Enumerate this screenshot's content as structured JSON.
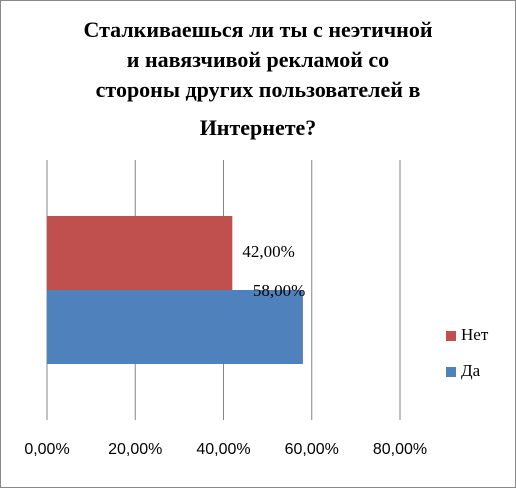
{
  "chart_data": {
    "type": "bar",
    "orientation": "horizontal",
    "title": [
      "Сталкиваешься  ли ты с неэтичной",
      "и навязчивой рекламой со",
      "стороны других пользователей  в",
      "Интернете?"
    ],
    "categories": [
      null
    ],
    "series": [
      {
        "name": "Нет",
        "color": "#C0504D",
        "values": [
          42
        ],
        "value_labels": [
          "42,00%"
        ]
      },
      {
        "name": "Да",
        "color": "#4F81BD",
        "values": [
          58
        ],
        "value_labels": [
          "58,00%"
        ]
      }
    ],
    "xlim": [
      0,
      80
    ],
    "xticks": [
      {
        "value": 0,
        "label": "0,00%"
      },
      {
        "value": 20,
        "label": "20,00%"
      },
      {
        "value": 40,
        "label": "40,00%"
      },
      {
        "value": 60,
        "label": "60,00%"
      },
      {
        "value": 80,
        "label": "80,00%"
      }
    ],
    "grid": true,
    "legend": "right"
  }
}
